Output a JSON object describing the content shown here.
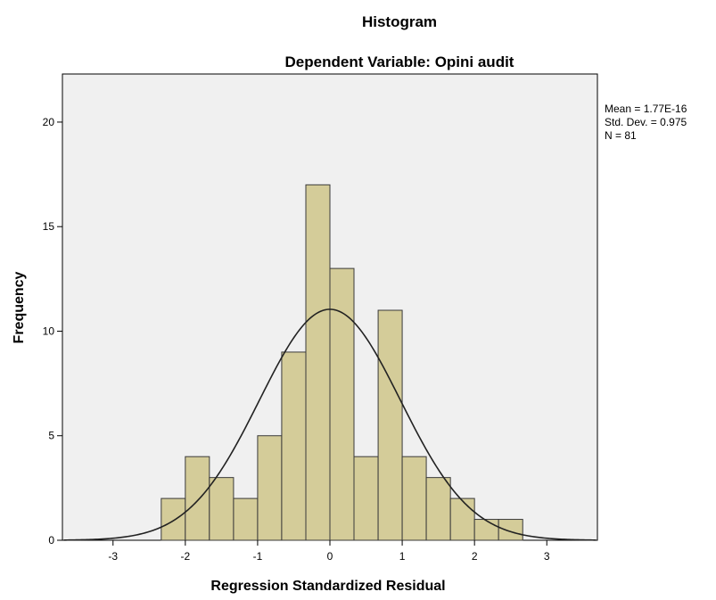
{
  "chart_data": {
    "type": "histogram",
    "title": "Histogram",
    "subtitle": "Dependent Variable: Opini audit",
    "xlabel": "Regression Standardized Residual",
    "ylabel": "Frequency",
    "xlim": [
      -3.7,
      3.7
    ],
    "ylim": [
      0,
      22.3
    ],
    "x_ticks": [
      -3,
      -2,
      -1,
      0,
      1,
      2,
      3
    ],
    "y_ticks": [
      0,
      5,
      10,
      15,
      20
    ],
    "bin_width": 0.3333,
    "bins": [
      {
        "start": -2.333,
        "end": -2.0,
        "count": 2
      },
      {
        "start": -2.0,
        "end": -1.667,
        "count": 4
      },
      {
        "start": -1.667,
        "end": -1.333,
        "count": 3
      },
      {
        "start": -1.333,
        "end": -1.0,
        "count": 2
      },
      {
        "start": -1.0,
        "end": -0.667,
        "count": 5
      },
      {
        "start": -0.667,
        "end": -0.333,
        "count": 9
      },
      {
        "start": -0.333,
        "end": 0.0,
        "count": 17
      },
      {
        "start": 0.0,
        "end": 0.333,
        "count": 13
      },
      {
        "start": 0.333,
        "end": 0.667,
        "count": 4
      },
      {
        "start": 0.667,
        "end": 1.0,
        "count": 11
      },
      {
        "start": 1.0,
        "end": 1.333,
        "count": 4
      },
      {
        "start": 1.333,
        "end": 1.667,
        "count": 3
      },
      {
        "start": 1.667,
        "end": 2.0,
        "count": 2
      },
      {
        "start": 2.0,
        "end": 2.333,
        "count": 1
      },
      {
        "start": 2.333,
        "end": 2.667,
        "count": 1
      }
    ],
    "normal_curve": {
      "mean": 0,
      "sd": 0.975,
      "n": 81
    },
    "stats": {
      "mean": "Mean = 1.77E-16",
      "std_dev": "Std. Dev. = 0.975",
      "n": "N = 81"
    },
    "colors": {
      "bar_fill": "#d4cc99",
      "bar_stroke": "#3a3a3a",
      "plot_background": "#f0f0f0",
      "curve": "#222222"
    }
  }
}
